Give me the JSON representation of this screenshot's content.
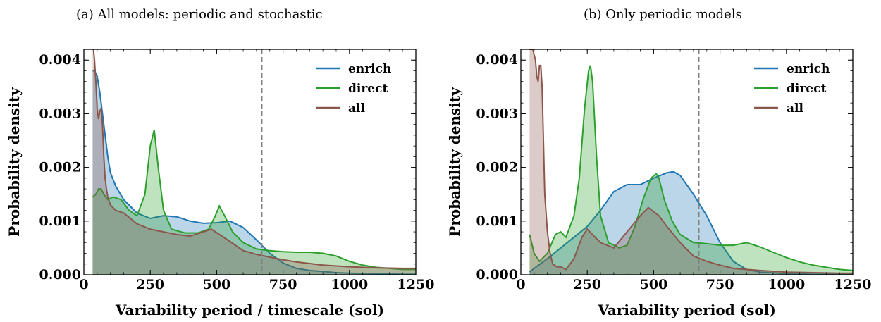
{
  "colors": {
    "enrich": "#1f77b4",
    "direct": "#2ca02c",
    "all": "#8c564b",
    "marker": "#808080"
  },
  "chart_data": [
    {
      "type": "area",
      "title": "(a) All models: periodic and stochastic",
      "xlabel": "Variability period / timescale (sol)",
      "ylabel": "Probability density",
      "xlim": [
        0,
        1250
      ],
      "ylim": [
        0,
        0.0042
      ],
      "xticks": [
        0,
        250,
        500,
        750,
        1000,
        1250
      ],
      "xtick_labels": [
        "0",
        "250",
        "500",
        "750",
        "1000",
        "1250"
      ],
      "yticks": [
        0,
        0.001,
        0.002,
        0.003,
        0.004
      ],
      "ytick_labels": [
        "0.000",
        "0.001",
        "0.002",
        "0.003",
        "0.004"
      ],
      "grid": false,
      "legend_position": "top-right",
      "vline_x": 670,
      "series": [
        {
          "name": "enrich",
          "key": "enrich",
          "x": [
            33,
            40,
            50,
            60,
            70,
            80,
            90,
            100,
            120,
            150,
            200,
            250,
            300,
            350,
            400,
            450,
            500,
            550,
            600,
            650,
            700,
            750,
            800,
            850,
            900,
            950,
            1000,
            1100,
            1200,
            1250
          ],
          "y": [
            0.0038,
            0.0038,
            0.0037,
            0.0034,
            0.003,
            0.0026,
            0.0022,
            0.0019,
            0.00165,
            0.0014,
            0.00115,
            0.00105,
            0.0011,
            0.00108,
            0.001,
            0.00096,
            0.00097,
            0.001,
            0.00088,
            0.00065,
            0.0004,
            0.00022,
            0.00012,
            8e-05,
            6e-05,
            4e-05,
            3e-05,
            2e-05,
            1e-05,
            1e-05
          ]
        },
        {
          "name": "direct",
          "key": "direct",
          "x": [
            33,
            45,
            55,
            65,
            75,
            90,
            110,
            140,
            170,
            200,
            230,
            250,
            265,
            280,
            300,
            330,
            380,
            430,
            470,
            495,
            510,
            530,
            560,
            600,
            650,
            700,
            750,
            800,
            850,
            900,
            950,
            1000,
            1050,
            1100,
            1150,
            1200,
            1250
          ],
          "y": [
            0.00145,
            0.0015,
            0.0016,
            0.0016,
            0.0015,
            0.0014,
            0.00145,
            0.0014,
            0.0012,
            0.0011,
            0.0015,
            0.0024,
            0.0027,
            0.002,
            0.0012,
            0.00085,
            0.00078,
            0.00078,
            0.00085,
            0.0011,
            0.00128,
            0.0011,
            0.0008,
            0.0006,
            0.00048,
            0.00045,
            0.00043,
            0.00042,
            0.00042,
            0.0004,
            0.00035,
            0.00025,
            0.00018,
            0.00014,
            0.00012,
            0.0001,
            0.0001
          ]
        },
        {
          "name": "all",
          "key": "all",
          "x": [
            33,
            36,
            40,
            45,
            50,
            55,
            60,
            65,
            70,
            75,
            80,
            85,
            90,
            100,
            120,
            150,
            200,
            250,
            300,
            350,
            400,
            450,
            480,
            520,
            550,
            600,
            650,
            700,
            750,
            800,
            900,
            1000,
            1100,
            1200,
            1250
          ],
          "y": [
            0.0042,
            0.0042,
            0.004,
            0.0036,
            0.0031,
            0.0029,
            0.00305,
            0.0031,
            0.0028,
            0.0022,
            0.0018,
            0.0016,
            0.00145,
            0.0013,
            0.0012,
            0.00115,
            0.00095,
            0.00085,
            0.0008,
            0.00075,
            0.00072,
            0.0008,
            0.00085,
            0.00072,
            0.00062,
            0.00045,
            0.00038,
            0.00033,
            0.00028,
            0.00024,
            0.00018,
            0.00015,
            0.00013,
            0.00012,
            0.00012
          ]
        }
      ]
    },
    {
      "type": "area",
      "title": "(b) Only periodic models",
      "xlabel": "Variability period (sol)",
      "ylabel": "Probability density",
      "xlim": [
        0,
        1250
      ],
      "ylim": [
        0,
        0.0042
      ],
      "xticks": [
        0,
        250,
        500,
        750,
        1000,
        1250
      ],
      "xtick_labels": [
        "0",
        "250",
        "500",
        "750",
        "1000",
        "1250"
      ],
      "yticks": [
        0,
        0.001,
        0.002,
        0.003,
        0.004
      ],
      "ytick_labels": [
        "0.000",
        "0.001",
        "0.002",
        "0.003",
        "0.004"
      ],
      "grid": false,
      "legend_position": "top-right",
      "vline_x": 670,
      "series": [
        {
          "name": "enrich",
          "key": "enrich",
          "x": [
            33,
            50,
            100,
            150,
            200,
            250,
            300,
            350,
            400,
            450,
            500,
            550,
            575,
            600,
            650,
            700,
            750,
            800,
            850,
            900,
            1000,
            1100,
            1250
          ],
          "y": [
            5e-05,
            0.00012,
            0.0003,
            0.0005,
            0.0007,
            0.0009,
            0.0012,
            0.00155,
            0.00168,
            0.00168,
            0.0018,
            0.0019,
            0.00192,
            0.00185,
            0.0015,
            0.0011,
            0.0006,
            0.00025,
            0.0001,
            5e-05,
            2e-05,
            1e-05,
            1e-05
          ]
        },
        {
          "name": "direct",
          "key": "direct",
          "x": [
            33,
            50,
            70,
            100,
            130,
            150,
            170,
            200,
            220,
            240,
            255,
            262,
            270,
            285,
            300,
            330,
            370,
            400,
            430,
            460,
            490,
            510,
            520,
            540,
            570,
            600,
            650,
            700,
            750,
            800,
            850,
            900,
            950,
            1000,
            1050,
            1100,
            1150,
            1200,
            1250
          ],
          "y": [
            0.00075,
            0.0004,
            0.00025,
            0.0004,
            0.00075,
            0.0008,
            0.0007,
            0.0011,
            0.0018,
            0.0031,
            0.0038,
            0.0039,
            0.0036,
            0.0022,
            0.0011,
            0.0006,
            0.0005,
            0.00055,
            0.0009,
            0.0014,
            0.0018,
            0.00188,
            0.0018,
            0.0014,
            0.001,
            0.00075,
            0.0006,
            0.00058,
            0.00055,
            0.00055,
            0.0006,
            0.00052,
            0.00042,
            0.00032,
            0.00024,
            0.00018,
            0.00014,
            0.0001,
            8e-05
          ]
        },
        {
          "name": "all",
          "key": "all",
          "x": [
            33,
            38,
            45,
            50,
            55,
            60,
            65,
            70,
            75,
            80,
            85,
            90,
            100,
            110,
            120,
            135,
            150,
            170,
            200,
            230,
            250,
            280,
            300,
            350,
            400,
            450,
            480,
            520,
            550,
            600,
            650,
            700,
            750,
            800,
            900,
            1000,
            1100,
            1200,
            1250
          ],
          "y": [
            0.0042,
            0.0042,
            0.0042,
            0.0041,
            0.004,
            0.0037,
            0.0036,
            0.0039,
            0.0039,
            0.0035,
            0.0025,
            0.0015,
            0.0008,
            0.0004,
            0.0002,
            0.00015,
            0.00015,
            0.0001,
            0.0003,
            0.0007,
            0.00085,
            0.0007,
            0.0006,
            0.0005,
            0.0008,
            0.0011,
            0.00125,
            0.0011,
            0.0009,
            0.0006,
            0.00035,
            0.00025,
            0.00018,
            0.00012,
            8e-05,
            5e-05,
            4e-05,
            3e-05,
            3e-05
          ]
        }
      ]
    }
  ]
}
